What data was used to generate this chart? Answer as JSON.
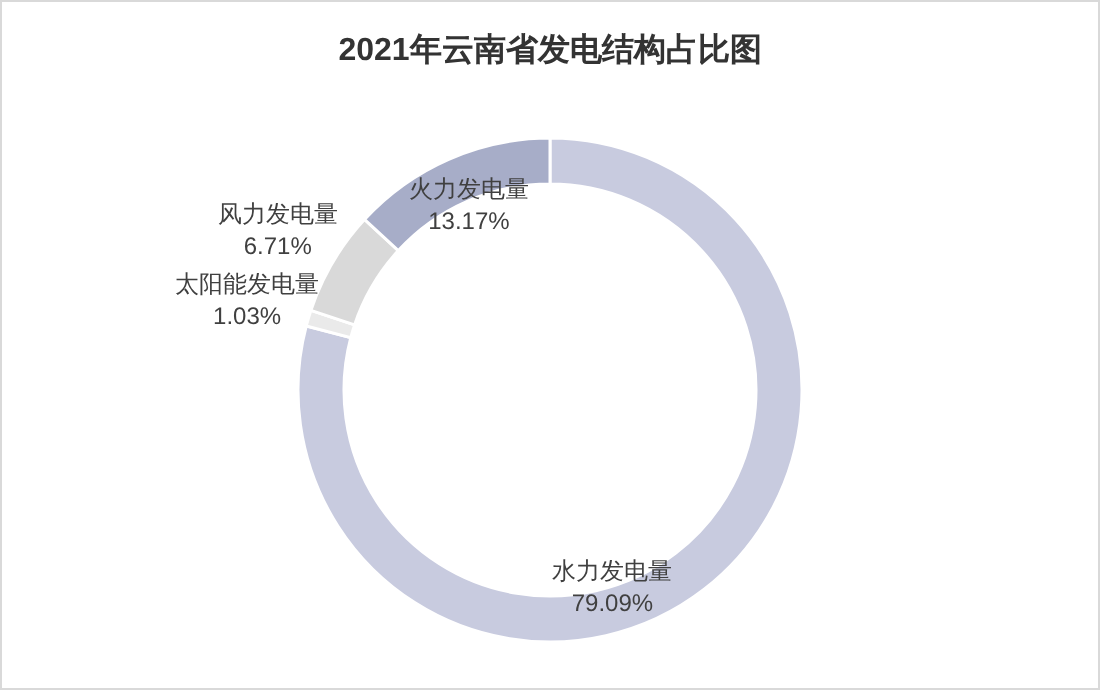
{
  "chart_data": {
    "type": "donut",
    "title": "2021年云南省发电结构占比图",
    "categories": [
      "水力发电量",
      "太阳能发电量",
      "风力发电量",
      "火力发电量"
    ],
    "values": [
      79.09,
      1.03,
      6.71,
      13.17
    ],
    "colors": [
      "#c8cbdf",
      "#eaeaea",
      "#d9d9d9",
      "#a7adc8"
    ],
    "value_labels": [
      "79.09%",
      "1.03%",
      "6.71%",
      "13.17%"
    ]
  }
}
